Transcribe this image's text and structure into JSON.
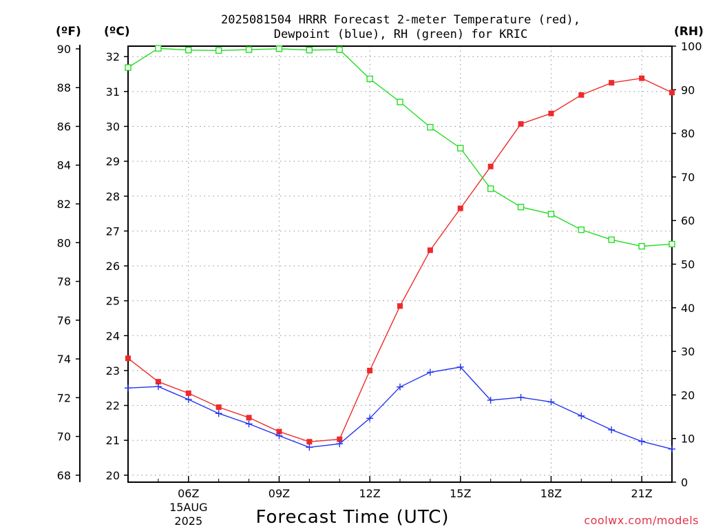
{
  "title": {
    "line1": "2025081504 HRRR Forecast 2-meter Temperature (red),",
    "line2": "Dewpoint (blue), RH (green) for KRIC"
  },
  "units": {
    "left_f": "(ºF)",
    "left_c": "(ºC)",
    "right_rh": "(RH)"
  },
  "xlabel": "Forecast Time (UTC)",
  "credit": "coolwx.com/models",
  "colors": {
    "temperature": "#ee2a2a",
    "dewpoint": "#2233ee",
    "rh": "#22dd22",
    "grid": "#8a8a8a"
  },
  "chart_data": {
    "type": "line",
    "title": "2025081504 HRRR Forecast 2-meter Temperature (red), Dewpoint (blue), RH (green) for KRIC",
    "xlabel": "Forecast Time (UTC)",
    "x_hours_utc": [
      4,
      5,
      6,
      7,
      8,
      9,
      10,
      11,
      12,
      13,
      14,
      15,
      16,
      17,
      18,
      19,
      20,
      21,
      22
    ],
    "xlim_hours": [
      4,
      22
    ],
    "x_ticks": [
      {
        "hour": 6,
        "label": "06Z"
      },
      {
        "hour": 9,
        "label": "09Z"
      },
      {
        "hour": 12,
        "label": "12Z"
      },
      {
        "hour": 15,
        "label": "15Z"
      },
      {
        "hour": 18,
        "label": "18Z"
      },
      {
        "hour": 21,
        "label": "21Z"
      }
    ],
    "date_label": [
      "15AUG",
      "2025"
    ],
    "axes": {
      "left_f": {
        "ticks": [
          68,
          70,
          72,
          74,
          76,
          78,
          80,
          82,
          84,
          86,
          88,
          90
        ]
      },
      "left_c": {
        "range": [
          19.8,
          32.3
        ],
        "ticks": [
          20,
          21,
          22,
          23,
          24,
          25,
          26,
          27,
          28,
          29,
          30,
          31,
          32
        ]
      },
      "right_rh": {
        "range": [
          0,
          100
        ],
        "ticks": [
          0,
          10,
          20,
          30,
          40,
          50,
          60,
          70,
          80,
          90,
          100
        ]
      }
    },
    "series": [
      {
        "name": "Temperature",
        "axis": "left_c",
        "marker": "filled-square",
        "color": "#ee2a2a",
        "values": [
          23.35,
          22.68,
          22.35,
          21.95,
          21.65,
          21.25,
          20.96,
          21.03,
          23.0,
          24.85,
          26.45,
          27.65,
          28.85,
          30.07,
          30.37,
          30.9,
          31.25,
          31.38,
          30.97
        ]
      },
      {
        "name": "Dewpoint",
        "axis": "left_c",
        "marker": "plus",
        "color": "#2233ee",
        "values": [
          22.5,
          22.54,
          22.17,
          21.77,
          21.47,
          21.13,
          20.8,
          20.9,
          21.63,
          22.53,
          22.95,
          23.1,
          22.15,
          22.23,
          22.1,
          21.7,
          21.3,
          20.97,
          20.75
        ]
      },
      {
        "name": "RH",
        "axis": "right_rh",
        "marker": "open-square",
        "color": "#22dd22",
        "values": [
          95.1,
          99.5,
          99.1,
          99.0,
          99.2,
          99.4,
          99.1,
          99.2,
          92.5,
          87.2,
          81.4,
          76.6,
          67.3,
          63.1,
          61.5,
          57.9,
          55.6,
          54.1,
          54.6
        ]
      }
    ]
  }
}
